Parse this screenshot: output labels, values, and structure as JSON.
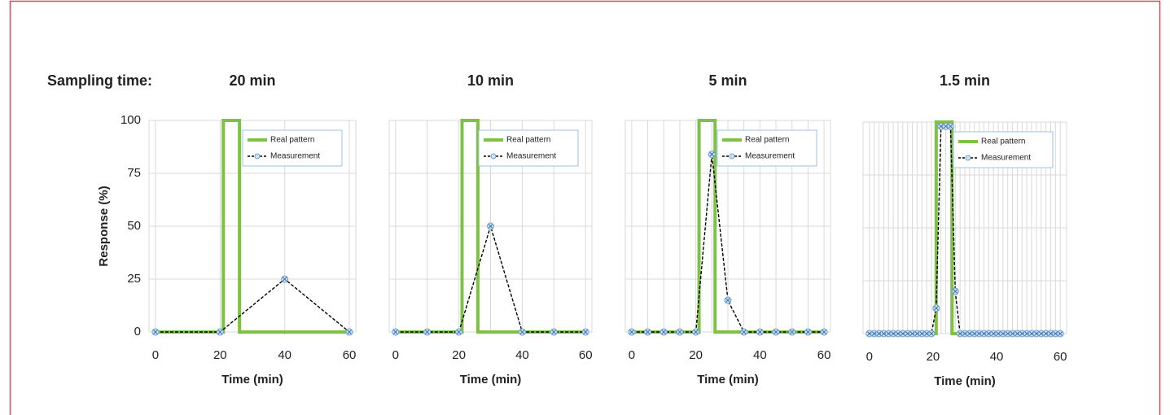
{
  "heading": "Sampling time:",
  "chart_data": [
    {
      "type": "line",
      "title": "20 min",
      "xlabel": "Time (min)",
      "ylabel": "Response (%)",
      "xlim": [
        -2,
        62
      ],
      "xticks": [
        0,
        20,
        40,
        60
      ],
      "ylim": [
        0,
        100
      ],
      "yticks": [
        0,
        25,
        50,
        75,
        100
      ],
      "grid": true,
      "legend": "upper right",
      "series": [
        {
          "name": "Real pattern",
          "color": "#7dc242",
          "x": [
            0,
            21,
            21,
            26,
            26,
            60
          ],
          "values": [
            0,
            0,
            100,
            100,
            0,
            0
          ]
        },
        {
          "name": "Measurement",
          "color": "#000000",
          "x": [
            0,
            20,
            40,
            60
          ],
          "values": [
            0,
            0,
            25,
            0
          ]
        }
      ]
    },
    {
      "type": "line",
      "title": "10 min",
      "xlabel": "Time (min)",
      "xlim": [
        -2,
        62
      ],
      "xticks": [
        0,
        20,
        40,
        60
      ],
      "ylim": [
        0,
        100
      ],
      "yticks": [
        0,
        25,
        50,
        75,
        100
      ],
      "grid": true,
      "legend": "upper right",
      "series": [
        {
          "name": "Real pattern",
          "color": "#7dc242",
          "x": [
            0,
            21,
            21,
            26,
            26,
            60
          ],
          "values": [
            0,
            0,
            100,
            100,
            0,
            0
          ]
        },
        {
          "name": "Measurement",
          "color": "#000000",
          "x": [
            0,
            10,
            20,
            30,
            40,
            50,
            60
          ],
          "values": [
            0,
            0,
            0,
            50,
            0,
            0,
            0
          ]
        }
      ]
    },
    {
      "type": "line",
      "title": "5 min",
      "xlabel": "Time (min)",
      "xlim": [
        -2,
        62
      ],
      "xticks": [
        0,
        20,
        40,
        60
      ],
      "ylim": [
        0,
        100
      ],
      "yticks": [
        0,
        25,
        50,
        75,
        100
      ],
      "grid": true,
      "legend": "upper right",
      "series": [
        {
          "name": "Real pattern",
          "color": "#7dc242",
          "x": [
            0,
            21,
            21,
            26,
            26,
            60
          ],
          "values": [
            0,
            0,
            100,
            100,
            0,
            0
          ]
        },
        {
          "name": "Measurement",
          "color": "#000000",
          "x": [
            0,
            5,
            10,
            15,
            20,
            25,
            30,
            35,
            40,
            45,
            50,
            55,
            60
          ],
          "values": [
            0,
            0,
            0,
            0,
            0,
            84,
            15,
            0,
            0,
            0,
            0,
            0,
            0
          ]
        }
      ]
    },
    {
      "type": "line",
      "title": "1.5 min",
      "xlabel": "Time (min)",
      "xlim": [
        -2,
        62
      ],
      "xticks": [
        0,
        20,
        40,
        60
      ],
      "ylim": [
        0,
        100
      ],
      "yticks": [
        0,
        25,
        50,
        75,
        100
      ],
      "grid": true,
      "legend": "upper right",
      "series": [
        {
          "name": "Real pattern",
          "color": "#7dc242",
          "x": [
            0,
            21,
            21,
            26,
            26,
            60
          ],
          "values": [
            0,
            0,
            100,
            100,
            0,
            0
          ]
        },
        {
          "name": "Measurement",
          "color": "#000000",
          "x": [
            0,
            1.5,
            3,
            4.5,
            6,
            7.5,
            9,
            10.5,
            12,
            13.5,
            15,
            16.5,
            18,
            19.5,
            21,
            22.5,
            24,
            25.5,
            27,
            28.5,
            30,
            31.5,
            33,
            34.5,
            36,
            37.5,
            39,
            40.5,
            42,
            43.5,
            45,
            46.5,
            48,
            49.5,
            51,
            52.5,
            54,
            55.5,
            57,
            58.5,
            60
          ],
          "values": [
            0,
            0,
            0,
            0,
            0,
            0,
            0,
            0,
            0,
            0,
            0,
            0,
            0,
            0,
            12,
            98,
            98,
            98,
            20,
            0,
            0,
            0,
            0,
            0,
            0,
            0,
            0,
            0,
            0,
            0,
            0,
            0,
            0,
            0,
            0,
            0,
            0,
            0,
            0,
            0,
            0
          ]
        }
      ]
    }
  ]
}
